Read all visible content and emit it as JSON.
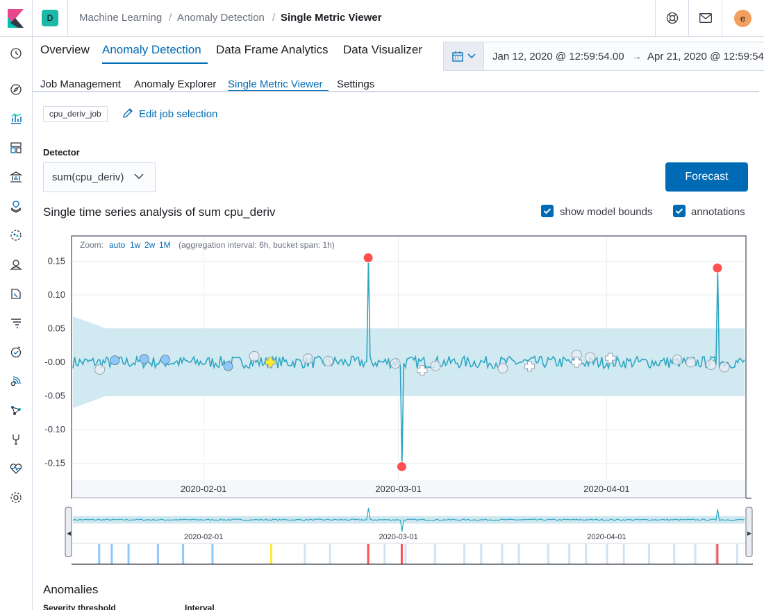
{
  "header": {
    "space_initial": "D",
    "breadcrumbs": [
      "Machine Learning",
      "Anomaly Detection",
      "Single Metric Viewer"
    ],
    "separator": "/",
    "user_initial": "e"
  },
  "tabs_lvl1": [
    "Overview",
    "Anomaly Detection",
    "Data Frame Analytics",
    "Data Visualizer"
  ],
  "tabs_lvl2": [
    "Job Management",
    "Anomaly Explorer",
    "Single Metric Viewer",
    "Settings"
  ],
  "date_picker": {
    "start": "Jan 12, 2020 @ 12:59:54.00",
    "arrow": "→",
    "end": "Apr 21, 2020 @ 12:59:54"
  },
  "job": {
    "badge": "cpu_deriv_job",
    "edit_label": "Edit job selection"
  },
  "detector": {
    "label": "Detector",
    "value": "sum(cpu_deriv)"
  },
  "forecast_label": "Forecast",
  "chart_title": "Single time series analysis of sum cpu_deriv",
  "options": {
    "model_bounds": "show model bounds",
    "annotations": "annotations"
  },
  "zoom": {
    "label": "Zoom:",
    "auto": "auto",
    "w1": "1w",
    "w2": "2w",
    "m1": "1M",
    "info": "(aggregation interval: 6h, bucket span: 1h)"
  },
  "chart_data": {
    "type": "line",
    "y_ticks": [
      "0.15",
      "0.10",
      "0.05",
      "-0.00",
      "-0.05",
      "-0.10",
      "-0.15"
    ],
    "x_ticks": [
      "2020-02-01",
      "2020-03-01",
      "2020-04-01"
    ],
    "context_x_ticks": [
      "2020-02-01",
      "2020-03-01",
      "2020-04-01"
    ],
    "ylim": [
      -0.17,
      0.17
    ],
    "model_bounds": [
      -0.05,
      0.05
    ],
    "series": [
      {
        "values_note": "noisy series around 0",
        "spikes": [
          {
            "date": "2020-02-25",
            "value": 0.155,
            "severity": "critical"
          },
          {
            "date": "2020-03-01",
            "value": -0.155,
            "severity": "critical"
          },
          {
            "date": "2020-04-17",
            "value": 0.14,
            "severity": "critical"
          }
        ]
      }
    ],
    "colors": {
      "line": "#2ea6c3",
      "bounds": "#cfe8f0",
      "critical": "#fe5050",
      "warning": "#fdec25",
      "minor": "#8bc8fb",
      "annotation": "#d3dae6"
    }
  },
  "anomalies": {
    "title": "Anomalies",
    "severity_label": "Severity threshold",
    "interval_label": "Interval"
  }
}
